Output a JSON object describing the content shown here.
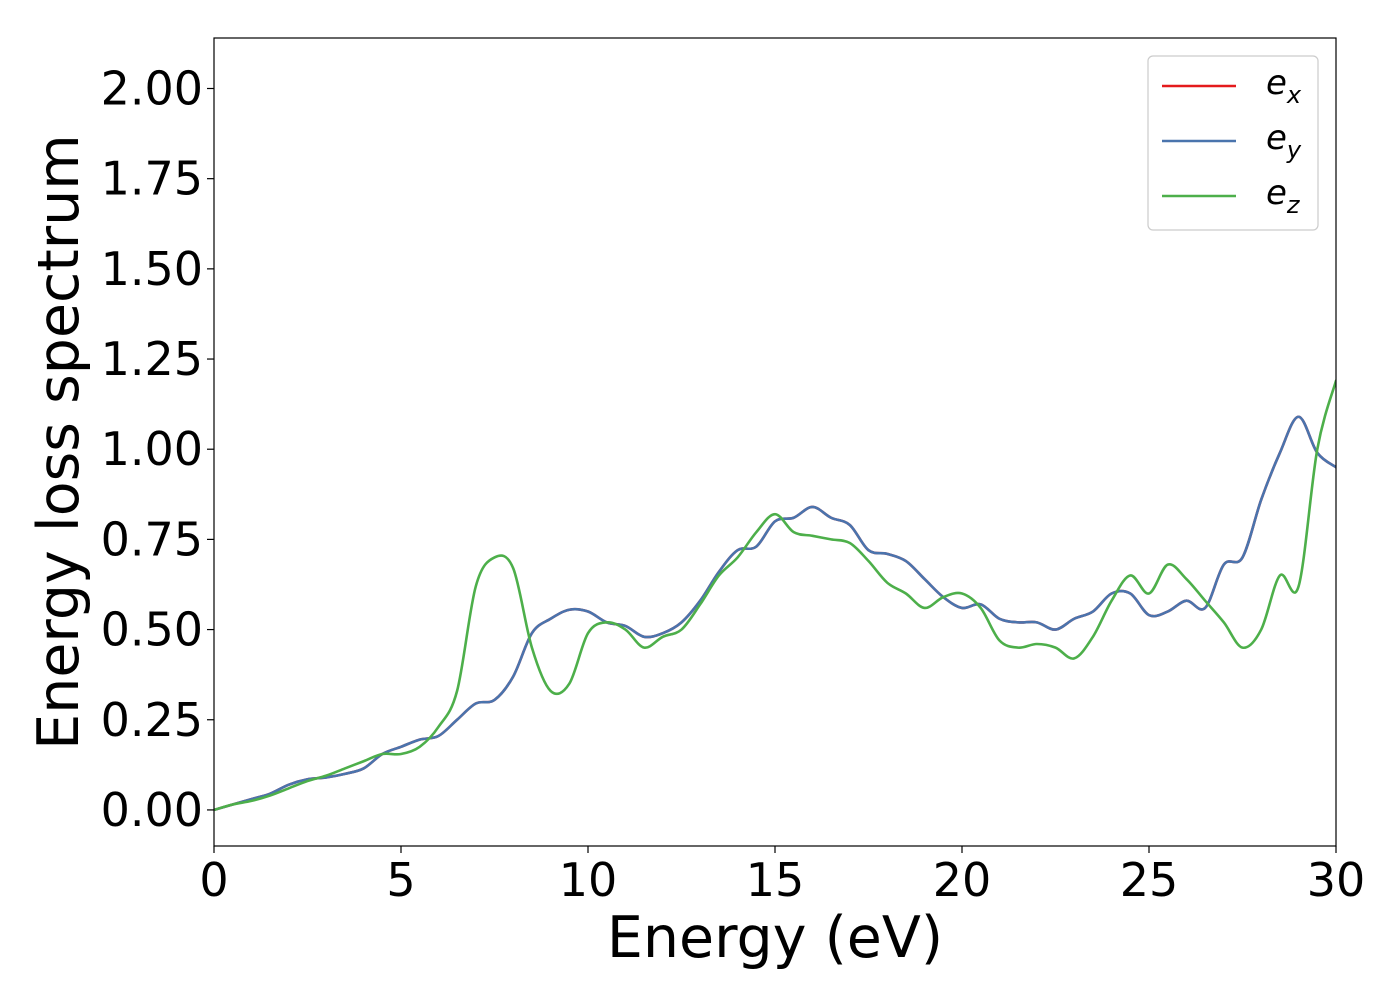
{
  "chart_data": {
    "type": "line",
    "xlabel": "Energy (eV)",
    "ylabel": "Energy loss spectrum",
    "xlim": [
      0,
      30
    ],
    "ylim": [
      -0.1,
      2.14
    ],
    "xticks": [
      0,
      5,
      10,
      15,
      20,
      25,
      30
    ],
    "xtick_labels": [
      "0",
      "5",
      "10",
      "15",
      "20",
      "25",
      "30"
    ],
    "yticks": [
      0.0,
      0.25,
      0.5,
      0.75,
      1.0,
      1.25,
      1.5,
      1.75,
      2.0
    ],
    "ytick_labels": [
      "0.00",
      "0.25",
      "0.50",
      "0.75",
      "1.00",
      "1.25",
      "1.50",
      "1.75",
      "2.00"
    ],
    "grid": false,
    "legend_position": "top-right",
    "series": [
      {
        "name": "e",
        "subscript": "x",
        "color": "#e41a1c",
        "x": [
          0,
          0.5,
          1,
          1.5,
          2,
          2.5,
          3,
          3.5,
          4,
          4.5,
          5,
          5.5,
          6,
          6.5,
          7,
          7.5,
          8,
          8.5,
          9,
          9.5,
          10,
          10.5,
          11,
          11.5,
          12,
          12.5,
          13,
          13.5,
          14,
          14.5,
          15,
          15.5,
          16,
          16.5,
          17,
          17.5,
          18,
          18.5,
          19,
          19.5,
          20,
          20.5,
          21,
          21.5,
          22,
          22.5,
          23,
          23.5,
          24,
          24.5,
          25,
          25.5,
          26,
          26.5,
          27,
          27.5,
          28,
          28.5,
          29,
          29.5,
          30
        ],
        "y": [
          0,
          0.015,
          0.03,
          0.045,
          0.07,
          0.085,
          0.09,
          0.1,
          0.115,
          0.155,
          0.175,
          0.195,
          0.205,
          0.25,
          0.295,
          0.305,
          0.37,
          0.49,
          0.53,
          0.555,
          0.55,
          0.52,
          0.51,
          0.48,
          0.49,
          0.52,
          0.58,
          0.66,
          0.72,
          0.73,
          0.8,
          0.81,
          0.84,
          0.81,
          0.79,
          0.72,
          0.71,
          0.69,
          0.64,
          0.59,
          0.56,
          0.57,
          0.53,
          0.52,
          0.52,
          0.5,
          0.53,
          0.55,
          0.6,
          0.6,
          0.54,
          0.55,
          0.58,
          0.56,
          0.68,
          0.7,
          0.86,
          0.99,
          1.09,
          0.99,
          0.95
        ]
      },
      {
        "name": "e",
        "subscript": "y",
        "color": "#4a74ad",
        "x": [
          0,
          0.5,
          1,
          1.5,
          2,
          2.5,
          3,
          3.5,
          4,
          4.5,
          5,
          5.5,
          6,
          6.5,
          7,
          7.5,
          8,
          8.5,
          9,
          9.5,
          10,
          10.5,
          11,
          11.5,
          12,
          12.5,
          13,
          13.5,
          14,
          14.5,
          15,
          15.5,
          16,
          16.5,
          17,
          17.5,
          18,
          18.5,
          19,
          19.5,
          20,
          20.5,
          21,
          21.5,
          22,
          22.5,
          23,
          23.5,
          24,
          24.5,
          25,
          25.5,
          26,
          26.5,
          27,
          27.5,
          28,
          28.5,
          29,
          29.5,
          30
        ],
        "y": [
          0,
          0.015,
          0.03,
          0.045,
          0.07,
          0.085,
          0.09,
          0.1,
          0.115,
          0.155,
          0.175,
          0.195,
          0.205,
          0.25,
          0.295,
          0.305,
          0.37,
          0.49,
          0.53,
          0.555,
          0.55,
          0.52,
          0.51,
          0.48,
          0.49,
          0.52,
          0.58,
          0.66,
          0.72,
          0.73,
          0.8,
          0.81,
          0.84,
          0.81,
          0.79,
          0.72,
          0.71,
          0.69,
          0.64,
          0.59,
          0.56,
          0.57,
          0.53,
          0.52,
          0.52,
          0.5,
          0.53,
          0.55,
          0.6,
          0.6,
          0.54,
          0.55,
          0.58,
          0.56,
          0.68,
          0.7,
          0.86,
          0.99,
          1.09,
          0.99,
          0.95
        ]
      },
      {
        "name": "e",
        "subscript": "z",
        "color": "#4daf4a",
        "x": [
          0,
          0.5,
          1,
          1.5,
          2,
          2.5,
          3,
          3.5,
          4,
          4.5,
          5,
          5.5,
          6,
          6.5,
          7,
          7.5,
          8,
          8.5,
          9,
          9.5,
          10,
          10.5,
          11,
          11.5,
          12,
          12.5,
          13,
          13.5,
          14,
          14.5,
          15,
          15.5,
          16,
          16.5,
          17,
          17.5,
          18,
          18.5,
          19,
          19.5,
          20,
          20.5,
          21,
          21.5,
          22,
          22.5,
          23,
          23.5,
          24,
          24.5,
          25,
          25.5,
          26,
          26.5,
          27,
          27.5,
          28,
          28.5,
          29,
          29.5,
          30
        ],
        "y": [
          0,
          0.015,
          0.025,
          0.04,
          0.06,
          0.08,
          0.095,
          0.115,
          0.135,
          0.155,
          0.155,
          0.175,
          0.23,
          0.33,
          0.62,
          0.7,
          0.67,
          0.45,
          0.33,
          0.35,
          0.49,
          0.52,
          0.5,
          0.45,
          0.48,
          0.5,
          0.57,
          0.65,
          0.7,
          0.77,
          0.82,
          0.77,
          0.76,
          0.75,
          0.74,
          0.69,
          0.63,
          0.6,
          0.56,
          0.59,
          0.6,
          0.56,
          0.47,
          0.45,
          0.46,
          0.45,
          0.42,
          0.48,
          0.58,
          0.65,
          0.6,
          0.68,
          0.64,
          0.58,
          0.52,
          0.45,
          0.5,
          0.65,
          0.62,
          1.0,
          1.19
        ]
      }
    ]
  }
}
